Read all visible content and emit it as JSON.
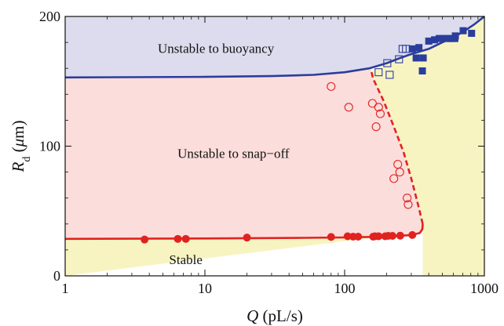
{
  "chart_data": {
    "type": "scatter",
    "x_scale": "log",
    "xlim": [
      1,
      1000
    ],
    "ylim": [
      0,
      200
    ],
    "x_ticks": [
      1,
      10,
      100,
      1000
    ],
    "x_tick_labels": [
      "1",
      "10",
      "100",
      "1000"
    ],
    "y_ticks": [
      0,
      100,
      200
    ],
    "y_tick_labels": [
      "0",
      "100",
      "200"
    ],
    "xlabel": {
      "symbol": "Q",
      "unit": " (pL/s)"
    },
    "ylabel": {
      "symbol": "R",
      "subscript": "d",
      "unit_open": " (",
      "mu": "μ",
      "unit_close": "m)"
    },
    "grid": false,
    "regions": [
      {
        "label": "Unstable to buoyancy",
        "color": "#dcdcee",
        "label_at": {
          "x": 12,
          "y": 172
        }
      },
      {
        "label": "Unstable to snap−off",
        "color": "#fbdddb",
        "label_at": {
          "x": 16,
          "y": 91
        }
      },
      {
        "label": "Stable",
        "color": "#f8f4c2",
        "label_at": {
          "x": 7.3,
          "y": 9
        }
      },
      {
        "color": "#f8f4c2",
        "fill_right_of_dashed": true
      }
    ],
    "curves": [
      {
        "name": "buoyancy boundary",
        "color": "#2b3d9c",
        "style": "solid",
        "points": [
          [
            1,
            153
          ],
          [
            10,
            153.4
          ],
          [
            30,
            154
          ],
          [
            60,
            155
          ],
          [
            100,
            157
          ],
          [
            150,
            160
          ],
          [
            200,
            164
          ],
          [
            250,
            168
          ],
          [
            300,
            171
          ],
          [
            400,
            175
          ],
          [
            500,
            180
          ],
          [
            600,
            184
          ],
          [
            700,
            188
          ],
          [
            850,
            194
          ],
          [
            1000,
            200
          ]
        ]
      },
      {
        "name": "snap-off boundary",
        "color": "#e0231f",
        "style": "solid",
        "points": [
          [
            1,
            28.5
          ],
          [
            10,
            28.8
          ],
          [
            50,
            29.3
          ],
          [
            100,
            29.6
          ],
          [
            200,
            30.3
          ],
          [
            300,
            31.5
          ],
          [
            345,
            33
          ],
          [
            360,
            36
          ],
          [
            362,
            40
          ]
        ]
      },
      {
        "name": "snap-off boundary dashed",
        "color": "#e0231f",
        "style": "dashed",
        "points": [
          [
            362,
            40
          ],
          [
            335,
            55
          ],
          [
            300,
            75
          ],
          [
            265,
            95
          ],
          [
            225,
            115
          ],
          [
            190,
            135
          ],
          [
            160,
            152
          ],
          [
            155,
            158
          ]
        ]
      }
    ],
    "series": [
      {
        "marker": "filled-circle",
        "color": "#e0231f",
        "points": [
          [
            3.7,
            28
          ],
          [
            6.4,
            28.5
          ],
          [
            7.3,
            28.5
          ],
          [
            20,
            29.5
          ],
          [
            80,
            30
          ],
          [
            105,
            30.5
          ],
          [
            115,
            30.2
          ],
          [
            125,
            30.2
          ],
          [
            160,
            30.2
          ],
          [
            165,
            30.5
          ],
          [
            175,
            30.5
          ],
          [
            195,
            30.5
          ],
          [
            205,
            30.8
          ],
          [
            220,
            30.8
          ],
          [
            250,
            31
          ],
          [
            305,
            31.5
          ]
        ]
      },
      {
        "marker": "open-circle",
        "color": "#e0231f",
        "points": [
          [
            80,
            146
          ],
          [
            107,
            130
          ],
          [
            158,
            133
          ],
          [
            175,
            130
          ],
          [
            180,
            125
          ],
          [
            168,
            115
          ],
          [
            240,
            86
          ],
          [
            248,
            80
          ],
          [
            225,
            75
          ],
          [
            280,
            60
          ],
          [
            285,
            55
          ]
        ]
      },
      {
        "marker": "open-square",
        "color": "#2b3d9c",
        "points": [
          [
            175,
            157
          ],
          [
            202,
            164
          ],
          [
            210,
            155
          ],
          [
            245,
            167
          ],
          [
            260,
            175
          ],
          [
            275,
            175
          ]
        ]
      },
      {
        "marker": "filled-square",
        "color": "#2b3d9c",
        "points": [
          [
            305,
            175
          ],
          [
            325,
            168
          ],
          [
            340,
            176
          ],
          [
            365,
            168
          ],
          [
            360,
            158
          ],
          [
            400,
            181
          ],
          [
            440,
            182
          ],
          [
            475,
            183
          ],
          [
            505,
            183
          ],
          [
            545,
            183
          ],
          [
            580,
            183
          ],
          [
            615,
            183
          ],
          [
            620,
            185
          ],
          [
            705,
            189
          ],
          [
            810,
            187
          ]
        ]
      }
    ]
  }
}
